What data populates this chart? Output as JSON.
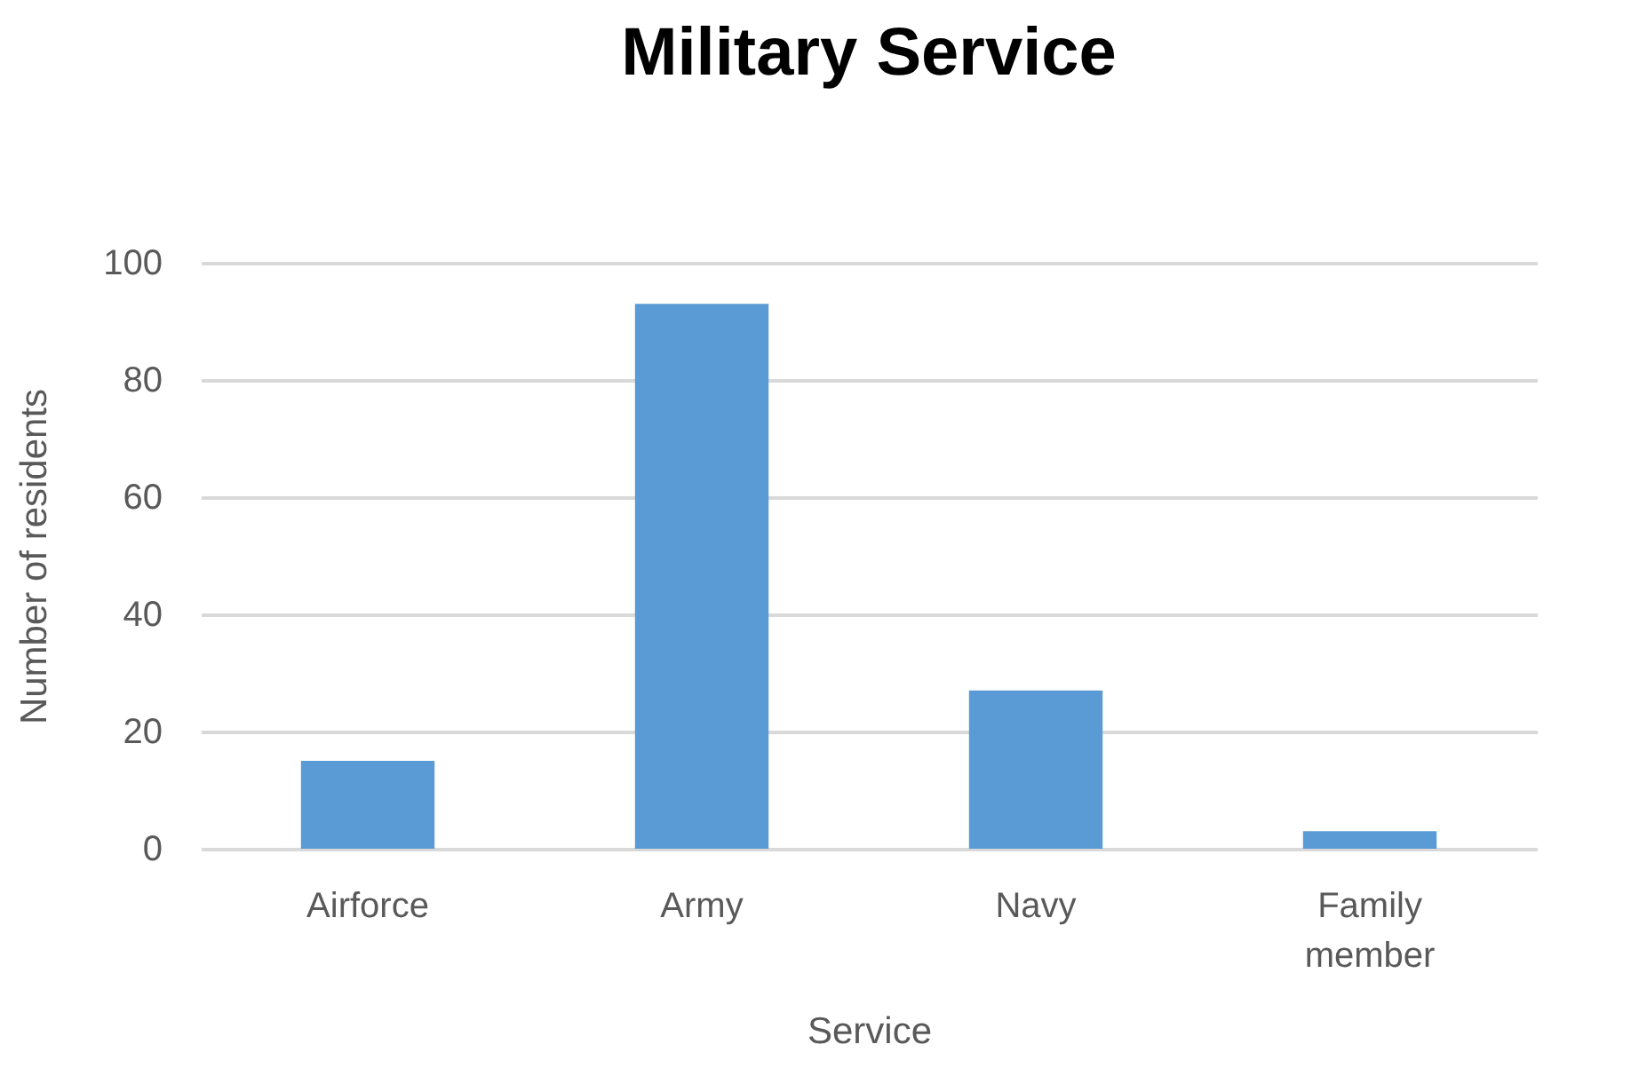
{
  "chart_data": {
    "type": "bar",
    "title": "Military Service",
    "xlabel": "Service",
    "ylabel": "Number of residents",
    "categories": [
      "Airforce",
      "Army",
      "Navy",
      "Family member"
    ],
    "values": [
      15,
      93,
      27,
      3
    ],
    "color": "#5b9bd5",
    "ylim": [
      0,
      100
    ],
    "yticks": [
      0,
      20,
      40,
      60,
      80,
      100
    ],
    "grid": "y"
  }
}
